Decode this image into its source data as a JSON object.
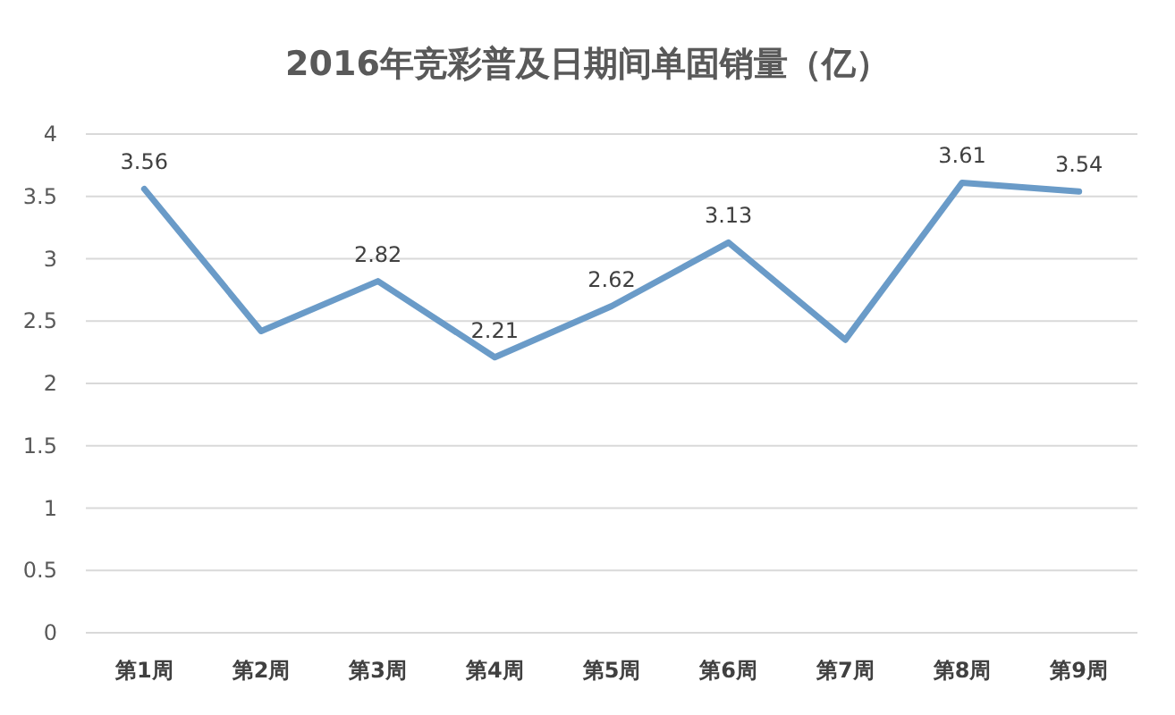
{
  "chart_data": {
    "type": "line",
    "title": "2016年竞彩普及日期间单固销量（亿）",
    "categories": [
      "第1周",
      "第2周",
      "第3周",
      "第4周",
      "第5周",
      "第6周",
      "第7周",
      "第8周",
      "第9周"
    ],
    "values": [
      3.56,
      2.42,
      2.82,
      2.21,
      2.62,
      3.13,
      2.35,
      3.61,
      3.54
    ],
    "value_labels": [
      "3.56",
      null,
      "2.82",
      "2.21",
      "2.62",
      "3.13",
      null,
      "3.61",
      "3.54"
    ],
    "color": "#6a9bc8",
    "ylim": [
      0,
      4
    ],
    "yticks": [
      0,
      0.5,
      1,
      1.5,
      2,
      2.5,
      3,
      3.5,
      4
    ],
    "grid": "y",
    "marker": "none",
    "line_style": "solid"
  }
}
